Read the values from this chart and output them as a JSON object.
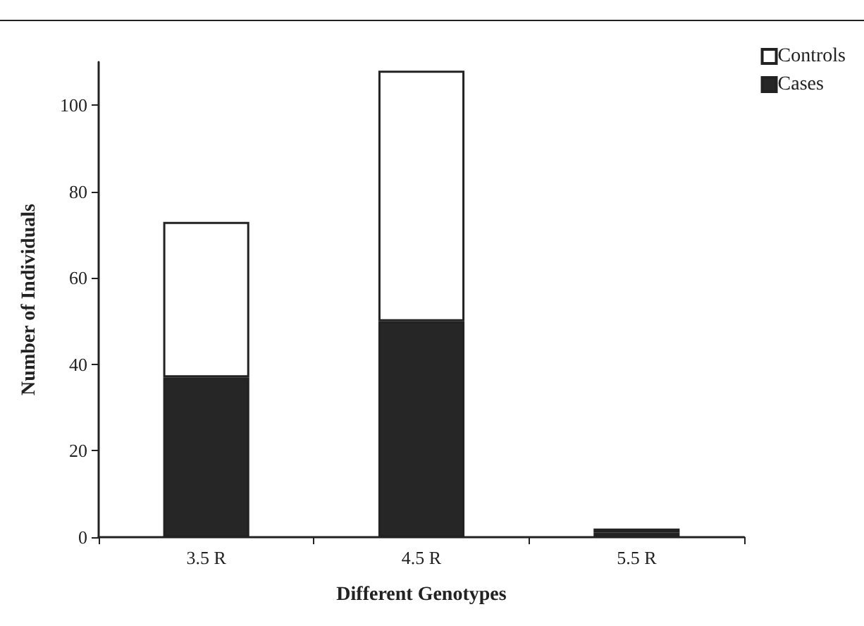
{
  "chart_data": {
    "type": "bar",
    "xlabel": "Different Genotypes",
    "ylabel": "Number of Individuals",
    "categories": [
      "3.5 R",
      "4.5 R",
      "5.5 R"
    ],
    "stacked": true,
    "series": [
      {
        "name": "Cases",
        "color": "#262626",
        "values": [
          37,
          50,
          1
        ]
      },
      {
        "name": "Controls",
        "color": "#ffffff",
        "values": [
          36,
          58,
          1
        ]
      }
    ],
    "ylim": [
      0,
      110
    ],
    "yticks": [
      0,
      20,
      40,
      60,
      80,
      100
    ],
    "grid": false,
    "legend": "top right"
  }
}
